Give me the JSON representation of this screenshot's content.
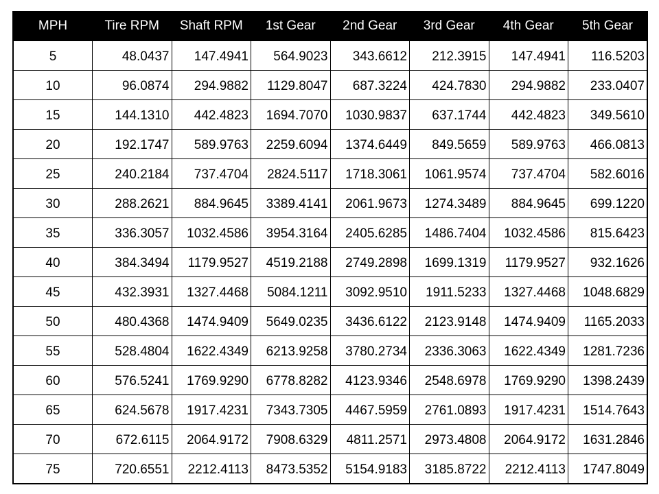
{
  "chart_data": {
    "type": "table",
    "title": "",
    "columns": [
      "MPH",
      "Tire RPM",
      "Shaft RPM",
      "1st Gear",
      "2nd Gear",
      "3rd Gear",
      "4th Gear",
      "5th Gear"
    ],
    "rows": [
      [
        "5",
        "48.0437",
        "147.4941",
        "564.9023",
        "343.6612",
        "212.3915",
        "147.4941",
        "116.5203"
      ],
      [
        "10",
        "96.0874",
        "294.9882",
        "1129.8047",
        "687.3224",
        "424.7830",
        "294.9882",
        "233.0407"
      ],
      [
        "15",
        "144.1310",
        "442.4823",
        "1694.7070",
        "1030.9837",
        "637.1744",
        "442.4823",
        "349.5610"
      ],
      [
        "20",
        "192.1747",
        "589.9763",
        "2259.6094",
        "1374.6449",
        "849.5659",
        "589.9763",
        "466.0813"
      ],
      [
        "25",
        "240.2184",
        "737.4704",
        "2824.5117",
        "1718.3061",
        "1061.9574",
        "737.4704",
        "582.6016"
      ],
      [
        "30",
        "288.2621",
        "884.9645",
        "3389.4141",
        "2061.9673",
        "1274.3489",
        "884.9645",
        "699.1220"
      ],
      [
        "35",
        "336.3057",
        "1032.4586",
        "3954.3164",
        "2405.6285",
        "1486.7404",
        "1032.4586",
        "815.6423"
      ],
      [
        "40",
        "384.3494",
        "1179.9527",
        "4519.2188",
        "2749.2898",
        "1699.1319",
        "1179.9527",
        "932.1626"
      ],
      [
        "45",
        "432.3931",
        "1327.4468",
        "5084.1211",
        "3092.9510",
        "1911.5233",
        "1327.4468",
        "1048.6829"
      ],
      [
        "50",
        "480.4368",
        "1474.9409",
        "5649.0235",
        "3436.6122",
        "2123.9148",
        "1474.9409",
        "1165.2033"
      ],
      [
        "55",
        "528.4804",
        "1622.4349",
        "6213.9258",
        "3780.2734",
        "2336.3063",
        "1622.4349",
        "1281.7236"
      ],
      [
        "60",
        "576.5241",
        "1769.9290",
        "6778.8282",
        "4123.9346",
        "2548.6978",
        "1769.9290",
        "1398.2439"
      ],
      [
        "65",
        "624.5678",
        "1917.4231",
        "7343.7305",
        "4467.5959",
        "2761.0893",
        "1917.4231",
        "1514.7643"
      ],
      [
        "70",
        "672.6115",
        "2064.9172",
        "7908.6329",
        "4811.2571",
        "2973.4808",
        "2064.9172",
        "1631.2846"
      ],
      [
        "75",
        "720.6551",
        "2212.4113",
        "8473.5352",
        "5154.9183",
        "3185.8722",
        "2212.4113",
        "1747.8049"
      ]
    ],
    "layout": {
      "grid": true,
      "header_position": "top",
      "first_column_align": "center",
      "value_columns_align": "right"
    }
  },
  "colors": {
    "header_bg": "#000000",
    "header_text": "#ffffff",
    "body_bg": "#ffffff",
    "body_text": "#000000",
    "border": "#000000",
    "page_bg": "#ffffff"
  }
}
